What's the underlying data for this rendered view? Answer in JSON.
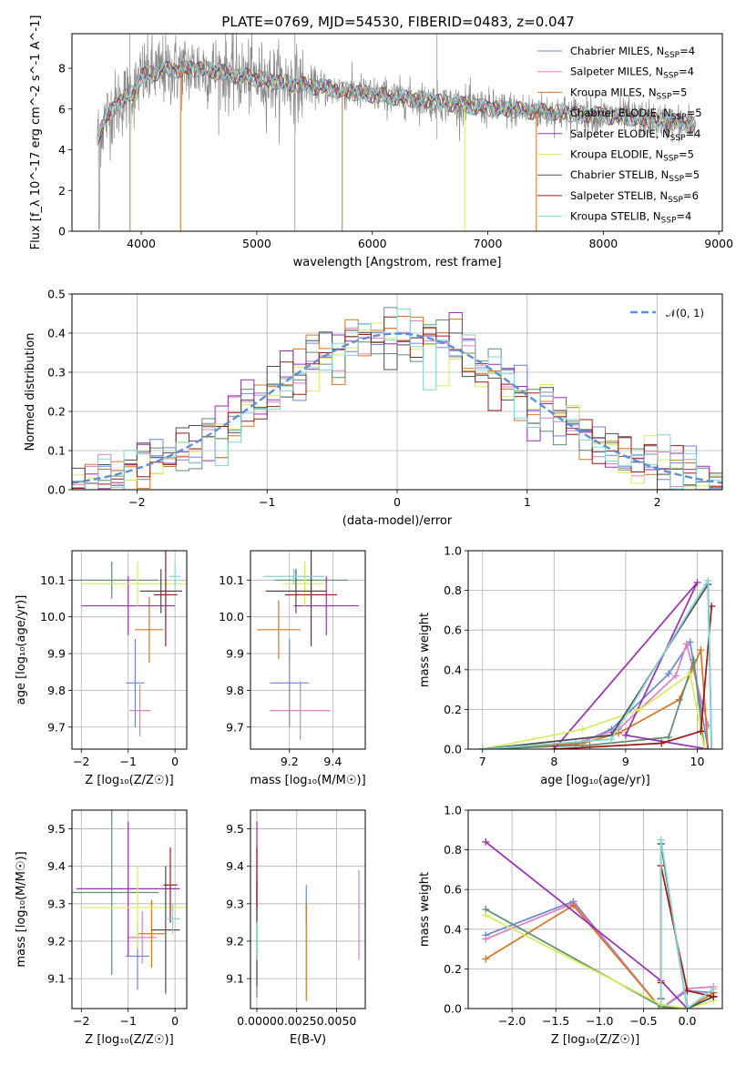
{
  "colors": {
    "chabrier_miles": "#6b86d8",
    "salpeter_miles": "#e07ec0",
    "kroupa_miles": "#d9741f",
    "chabrier_elodie": "#5f8f6f",
    "salpeter_elodie": "#9a2fb5",
    "kroupa_elodie": "#d2ef5a",
    "chabrier_stelib": "#4d4d4d",
    "salpeter_stelib": "#a31616",
    "kroupa_stelib": "#7fd6d9",
    "data": "#8a8a8a",
    "normal": "#5b8fd6"
  },
  "chart_data": [
    {
      "id": "spectrum",
      "type": "line",
      "title": "PLATE=0769, MJD=54530, FIBERID=0483, z=0.047",
      "xlabel": "wavelength [Angstrom, rest frame]",
      "ylabel": "Flux [f_λ 10^-17 erg cm^-2 s^-1 A^-1]",
      "xlim": [
        3400,
        9030
      ],
      "ylim": [
        0,
        9.7
      ],
      "xticks": [
        "4000",
        "5000",
        "6000",
        "7000",
        "8000",
        "9000"
      ],
      "yticks": [
        "0",
        "2",
        "4",
        "6",
        "8"
      ],
      "grid": false,
      "legend_position": "top-right",
      "series_legend": [
        {
          "name": "Chabrier MILES, N",
          "sub": "SSP",
          "suffix": "=4"
        },
        {
          "name": "Salpeter MILES, N",
          "sub": "SSP",
          "suffix": "=4"
        },
        {
          "name": "Kroupa MILES, N",
          "sub": "SSP",
          "suffix": "=5"
        },
        {
          "name": "Chabrier ELODIE, N",
          "sub": "SSP",
          "suffix": "=5"
        },
        {
          "name": "Salpeter ELODIE, N",
          "sub": "SSP",
          "suffix": "=4"
        },
        {
          "name": "Kroupa ELODIE, N",
          "sub": "SSP",
          "suffix": "=5"
        },
        {
          "name": "Chabrier STELIB, N",
          "sub": "SSP",
          "suffix": "=5"
        },
        {
          "name": "Salpeter STELIB, N",
          "sub": "SSP",
          "suffix": "=6"
        },
        {
          "name": "Kroupa STELIB, N",
          "sub": "SSP",
          "suffix": "=4"
        }
      ],
      "continuum": [
        [
          3620,
          4.6
        ],
        [
          3700,
          5.6
        ],
        [
          3800,
          6.3
        ],
        [
          3950,
          6.9
        ],
        [
          4000,
          7.6
        ],
        [
          4200,
          7.9
        ],
        [
          4500,
          8.0
        ],
        [
          4800,
          7.7
        ],
        [
          5100,
          7.4
        ],
        [
          5500,
          7.1
        ],
        [
          6000,
          6.7
        ],
        [
          6500,
          6.4
        ],
        [
          7000,
          6.05
        ],
        [
          7400,
          5.9
        ],
        [
          7800,
          5.75
        ],
        [
          8200,
          5.6
        ],
        [
          8500,
          5.4
        ],
        [
          8800,
          5.25
        ]
      ]
    },
    {
      "id": "residuals",
      "type": "histogram",
      "xlabel": "(data-model)/error",
      "ylabel": "Normed distribution",
      "xlim": [
        -2.5,
        2.5
      ],
      "ylim": [
        0,
        0.5
      ],
      "xticks": [
        "−2",
        "−1",
        "0",
        "1",
        "2"
      ],
      "yticks": [
        "0.0",
        "0.1",
        "0.2",
        "0.3",
        "0.4",
        "0.5"
      ],
      "grid": true,
      "bin_width": 0.1,
      "legend": "𝒩(0, 1)",
      "legend_position": "top-right"
    },
    {
      "id": "age_vs_z",
      "type": "errorbar",
      "xlabel": "Z [log₁₀(Z/Z☉)]",
      "ylabel": "age  [log₁₀(age/yr)]",
      "xlim": [
        -2.2,
        0.25
      ],
      "ylim": [
        9.64,
        10.18
      ],
      "xticks": [
        "−2",
        "−1",
        "0"
      ],
      "xtick_values": [
        -2,
        -1,
        0
      ],
      "yticks": [
        "9.7",
        "9.8",
        "9.9",
        "10.0",
        "10.1"
      ],
      "ytick_values": [
        9.7,
        9.8,
        9.9,
        10.0,
        10.1
      ],
      "points": [
        {
          "model": "chabrier_miles",
          "x": -0.85,
          "xerr": 0.2,
          "y": 9.82,
          "yerr": 0.12
        },
        {
          "model": "salpeter_miles",
          "x": -0.75,
          "xerr": 0.22,
          "y": 9.745,
          "yerr": 0.07
        },
        {
          "model": "kroupa_miles",
          "x": -0.55,
          "xerr": 0.3,
          "y": 9.965,
          "yerr": 0.09
        },
        {
          "model": "chabrier_elodie",
          "x": -1.35,
          "xerr": 1.0,
          "y": 10.1,
          "yerr": 0.05
        },
        {
          "model": "salpeter_elodie",
          "x": -1.0,
          "xerr": 1.0,
          "y": 10.03,
          "yerr": 0.08
        },
        {
          "model": "kroupa_elodie",
          "x": -0.8,
          "xerr": 1.2,
          "y": 10.09,
          "yerr": 0.06
        },
        {
          "model": "chabrier_stelib",
          "x": -0.3,
          "xerr": 0.45,
          "y": 10.07,
          "yerr": 0.06
        },
        {
          "model": "salpeter_stelib",
          "x": -0.2,
          "xerr": 0.25,
          "y": 10.06,
          "yerr": 0.14
        },
        {
          "model": "kroupa_stelib",
          "x": 0.0,
          "xerr": 0.12,
          "y": 10.11,
          "yerr": 0.03
        }
      ]
    },
    {
      "id": "age_vs_mass",
      "type": "errorbar",
      "xlabel": "mass [log₁₀(M/M☉)]",
      "ylabel": "",
      "xlim": [
        9.02,
        9.55
      ],
      "ylim": [
        9.64,
        10.18
      ],
      "xticks": [
        "9.2",
        "9.4"
      ],
      "xtick_values": [
        9.2,
        9.4
      ],
      "yticks": [
        "9.7",
        "9.8",
        "9.9",
        "10.0",
        "10.1"
      ],
      "ytick_values": [
        9.7,
        9.8,
        9.9,
        10.0,
        10.1
      ],
      "points": [
        {
          "model": "chabrier_miles",
          "x": 9.2,
          "xerr": 0.09,
          "y": 9.82,
          "yerr": 0.12
        },
        {
          "model": "salpeter_miles",
          "x": 9.25,
          "xerr": 0.14,
          "y": 9.745,
          "yerr": 0.08
        },
        {
          "model": "kroupa_miles",
          "x": 9.15,
          "xerr": 0.1,
          "y": 9.965,
          "yerr": 0.08
        },
        {
          "model": "chabrier_elodie",
          "x": 9.3,
          "xerr": 0.17,
          "y": 10.1,
          "yerr": 0.05
        },
        {
          "model": "salpeter_elodie",
          "x": 9.37,
          "xerr": 0.15,
          "y": 10.03,
          "yerr": 0.08
        },
        {
          "model": "kroupa_elodie",
          "x": 9.27,
          "xerr": 0.1,
          "y": 10.09,
          "yerr": 0.06
        },
        {
          "model": "chabrier_stelib",
          "x": 9.23,
          "xerr": 0.14,
          "y": 10.07,
          "yerr": 0.06
        },
        {
          "model": "salpeter_stelib",
          "x": 9.3,
          "xerr": 0.12,
          "y": 10.06,
          "yerr": 0.14
        },
        {
          "model": "kroupa_stelib",
          "x": 9.22,
          "xerr": 0.14,
          "y": 10.11,
          "yerr": 0.02
        }
      ]
    },
    {
      "id": "massweight_vs_age",
      "type": "line",
      "xlabel": "age  [log₁₀(age/yr)]",
      "ylabel": "mass weight",
      "xlim": [
        6.8,
        10.35
      ],
      "ylim": [
        0,
        1.0
      ],
      "xticks": [
        "7",
        "8",
        "9",
        "10"
      ],
      "xtick_values": [
        7,
        8,
        9,
        10
      ],
      "yticks": [
        "0.0",
        "0.2",
        "0.4",
        "0.6",
        "0.8",
        "1.0"
      ],
      "ytick_values": [
        0,
        0.2,
        0.4,
        0.6,
        0.8,
        1.0
      ],
      "grid": true,
      "series": [
        {
          "model": "chabrier_miles",
          "x": [
            7.0,
            8.3,
            8.8,
            9.6,
            9.9,
            10.15
          ],
          "y": [
            0.0,
            0.02,
            0.1,
            0.38,
            0.54,
            0.0
          ]
        },
        {
          "model": "salpeter_miles",
          "x": [
            7.0,
            8.3,
            8.9,
            9.7,
            9.85,
            10.15
          ],
          "y": [
            0.0,
            0.03,
            0.1,
            0.37,
            0.53,
            0.12
          ]
        },
        {
          "model": "kroupa_miles",
          "x": [
            7.0,
            8.4,
            8.9,
            9.75,
            10.05,
            10.15
          ],
          "y": [
            0.0,
            0.03,
            0.08,
            0.25,
            0.5,
            0.0
          ]
        },
        {
          "model": "chabrier_elodie",
          "x": [
            7.0,
            8.5,
            9.6,
            9.95,
            10.1
          ],
          "y": [
            0.0,
            0.02,
            0.06,
            0.45,
            0.0
          ]
        },
        {
          "model": "salpeter_elodie",
          "x": [
            8.0,
            10.0,
            9.0,
            10.15
          ],
          "y": [
            0.0,
            0.84,
            0.07,
            0.0
          ]
        },
        {
          "model": "kroupa_elodie",
          "x": [
            7.0,
            8.4,
            9.2,
            9.9,
            10.1
          ],
          "y": [
            0.0,
            0.1,
            0.2,
            0.38,
            0.0
          ]
        },
        {
          "model": "chabrier_stelib",
          "x": [
            7.0,
            8.8,
            10.15,
            10.2
          ],
          "y": [
            0.0,
            0.07,
            0.83,
            0.0
          ]
        },
        {
          "model": "salpeter_stelib",
          "x": [
            8.0,
            9.5,
            10.05,
            10.2
          ],
          "y": [
            0.0,
            0.03,
            0.09,
            0.72
          ]
        },
        {
          "model": "kroupa_stelib",
          "x": [
            7.0,
            8.8,
            10.15,
            10.2
          ],
          "y": [
            0.0,
            0.05,
            0.85,
            0.0
          ]
        }
      ]
    },
    {
      "id": "mass_vs_z",
      "type": "errorbar",
      "xlabel": "Z [log₁₀(Z/Z☉)]",
      "ylabel": "mass [log₁₀(M/M☉)]",
      "xlim": [
        -2.2,
        0.25
      ],
      "ylim": [
        9.02,
        9.55
      ],
      "xticks": [
        "−2",
        "−1",
        "0"
      ],
      "xtick_values": [
        -2,
        -1,
        0
      ],
      "yticks": [
        "9.1",
        "9.2",
        "9.3",
        "9.4",
        "9.5"
      ],
      "ytick_values": [
        9.1,
        9.2,
        9.3,
        9.4,
        9.5
      ],
      "points": [
        {
          "model": "chabrier_miles",
          "x": -0.8,
          "xerr": 0.25,
          "y": 9.16,
          "yerr": 0.09
        },
        {
          "model": "salpeter_miles",
          "x": -0.7,
          "xerr": 0.3,
          "y": 9.21,
          "yerr": 0.07
        },
        {
          "model": "kroupa_miles",
          "x": -0.5,
          "xerr": 0.28,
          "y": 9.22,
          "yerr": 0.09
        },
        {
          "model": "chabrier_elodie",
          "x": -1.35,
          "xerr": 1.0,
          "y": 9.33,
          "yerr": 0.22
        },
        {
          "model": "salpeter_elodie",
          "x": -1.0,
          "xerr": 1.1,
          "y": 9.34,
          "yerr": 0.18
        },
        {
          "model": "kroupa_elodie",
          "x": -0.8,
          "xerr": 1.2,
          "y": 9.29,
          "yerr": 0.11
        },
        {
          "model": "chabrier_stelib",
          "x": -0.2,
          "xerr": 0.3,
          "y": 9.23,
          "yerr": 0.17
        },
        {
          "model": "salpeter_stelib",
          "x": -0.1,
          "xerr": 0.15,
          "y": 9.35,
          "yerr": 0.1
        },
        {
          "model": "kroupa_stelib",
          "x": -0.05,
          "xerr": 0.15,
          "y": 9.26,
          "yerr": 0.04
        }
      ]
    },
    {
      "id": "mass_vs_ebv",
      "type": "errorbar",
      "xlabel": "E(B-V)",
      "ylabel": "",
      "xlim": [
        -0.0004,
        0.0068
      ],
      "ylim": [
        9.02,
        9.55
      ],
      "xticks": [
        "0.0000",
        "0.0025",
        "0.0050"
      ],
      "xtick_values": [
        0,
        0.0025,
        0.005
      ],
      "yticks": [
        "9.1",
        "9.2",
        "9.3",
        "9.4",
        "9.5"
      ],
      "ytick_values": [
        9.1,
        9.2,
        9.3,
        9.4,
        9.5
      ],
      "points": [
        {
          "model": "chabrier_miles",
          "x": 0.0031,
          "xerr": 0,
          "y": 9.3,
          "yerr": 0.05
        },
        {
          "model": "salpeter_miles",
          "x": 0.0064,
          "xerr": 0,
          "y": 9.27,
          "yerr": 0.12
        },
        {
          "model": "kroupa_miles",
          "x": 0.0031,
          "xerr": 0,
          "y": 9.17,
          "yerr": 0.13
        },
        {
          "model": "chabrier_elodie",
          "x": 0.0,
          "xerr": 0,
          "y": 9.2,
          "yerr": 0.15
        },
        {
          "model": "salpeter_elodie",
          "x": 0.0,
          "xerr": 0,
          "y": 9.39,
          "yerr": 0.13
        },
        {
          "model": "kroupa_elodie",
          "x": 0.0,
          "xerr": 0,
          "y": 9.28,
          "yerr": 0.09
        },
        {
          "model": "chabrier_stelib",
          "x": 0.0,
          "xerr": 0,
          "y": 9.22,
          "yerr": 0.14
        },
        {
          "model": "salpeter_stelib",
          "x": 0.0,
          "xerr": 0,
          "y": 9.37,
          "yerr": 0.08
        },
        {
          "model": "kroupa_stelib",
          "x": 0.0,
          "xerr": 0,
          "y": 9.2,
          "yerr": 0.05
        }
      ]
    },
    {
      "id": "massweight_vs_z",
      "type": "line",
      "xlabel": "Z [log₁₀(Z/Z☉)]",
      "ylabel": "mass weight",
      "xlim": [
        -2.5,
        0.4
      ],
      "ylim": [
        0,
        1.0
      ],
      "xticks": [
        "−2.0",
        "−1.5",
        "−1.0",
        "−0.5",
        "0.0"
      ],
      "xtick_values": [
        -2.0,
        -1.5,
        -1.0,
        -0.5,
        0.0
      ],
      "yticks": [
        "0.0",
        "0.2",
        "0.4",
        "0.6",
        "0.8",
        "1.0"
      ],
      "ytick_values": [
        0,
        0.2,
        0.4,
        0.6,
        0.8,
        1.0
      ],
      "grid": true,
      "series": [
        {
          "model": "chabrier_miles",
          "x": [
            -2.3,
            -1.3,
            -0.3,
            0.0,
            0.3
          ],
          "y": [
            0.37,
            0.54,
            0.0,
            0.09,
            0.08
          ]
        },
        {
          "model": "salpeter_miles",
          "x": [
            -2.3,
            -1.3,
            -0.3,
            0.0,
            0.3
          ],
          "y": [
            0.35,
            0.53,
            0.0,
            0.1,
            0.11
          ]
        },
        {
          "model": "kroupa_miles",
          "x": [
            -2.3,
            -1.3,
            -0.3,
            0.0,
            0.3
          ],
          "y": [
            0.25,
            0.52,
            0.0,
            0.0,
            0.08
          ]
        },
        {
          "model": "chabrier_elodie",
          "x": [
            -2.3,
            -0.3,
            0.0,
            0.3
          ],
          "y": [
            0.5,
            0.01,
            0.0,
            0.06
          ]
        },
        {
          "model": "salpeter_elodie",
          "x": [
            -2.3,
            -0.3,
            0.0,
            0.3
          ],
          "y": [
            0.84,
            0.14,
            0.0,
            0.06
          ]
        },
        {
          "model": "kroupa_elodie",
          "x": [
            -2.3,
            -0.3,
            0.0,
            0.3
          ],
          "y": [
            0.47,
            0.02,
            0.0,
            0.04
          ]
        },
        {
          "model": "chabrier_stelib",
          "x": [
            -0.3,
            -0.3,
            0.0,
            0.3
          ],
          "y": [
            0.05,
            0.83,
            0.0,
            0.06
          ]
        },
        {
          "model": "salpeter_stelib",
          "x": [
            -0.3,
            -0.3,
            0.0,
            0.3
          ],
          "y": [
            0.13,
            0.72,
            0.09,
            0.06
          ]
        },
        {
          "model": "kroupa_stelib",
          "x": [
            -0.3,
            -0.3,
            0.0,
            0.3
          ],
          "y": [
            0.0,
            0.85,
            0.0,
            0.1
          ]
        }
      ]
    }
  ]
}
